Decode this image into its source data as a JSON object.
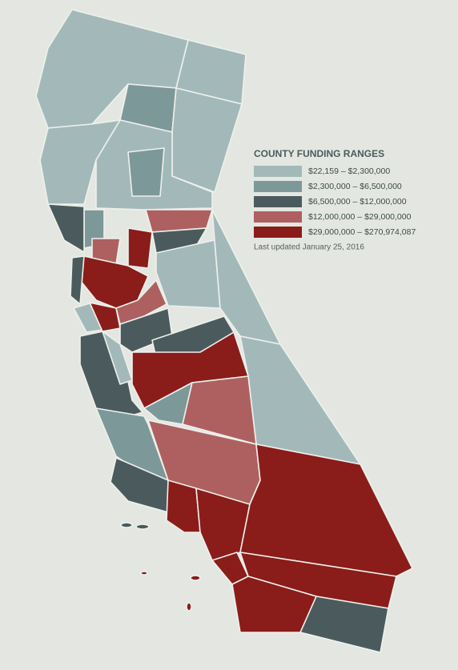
{
  "legend": {
    "title": "COUNTY FUNDING RANGES",
    "items": [
      {
        "label": "$22,159 – $2,300,000",
        "color": "#a3b9b9"
      },
      {
        "label": "$2,300,000 – $6,500,000",
        "color": "#7d9899"
      },
      {
        "label": "$6,500,000 – $12,000,000",
        "color": "#4b5b5d"
      },
      {
        "label": "$12,000,000 – $29,000,000",
        "color": "#ae6060"
      },
      {
        "label": "$29,000,000 – $270,974,087",
        "color": "#8a1c1a"
      }
    ],
    "note": "Last updated January 25, 2016"
  }
}
